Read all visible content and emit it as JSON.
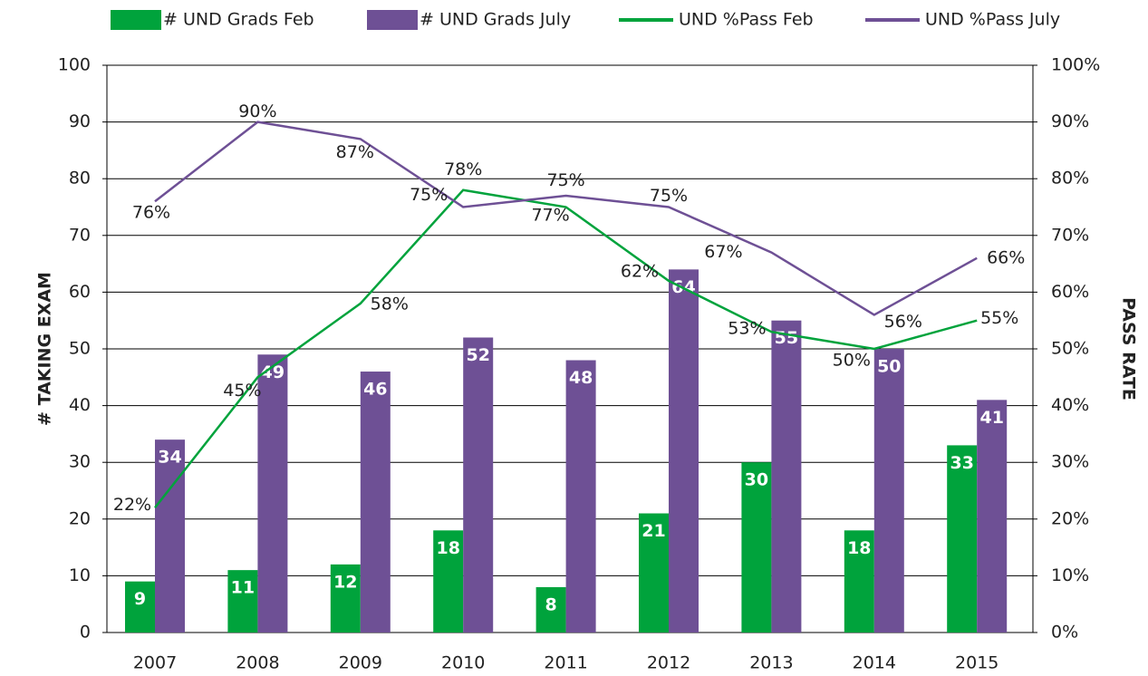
{
  "chart_data": {
    "type": "bar",
    "categories": [
      "2007",
      "2008",
      "2009",
      "2010",
      "2011",
      "2012",
      "2013",
      "2014",
      "2015"
    ],
    "series": [
      {
        "name": "# UND Grads Feb",
        "color": "#00a33c",
        "values": [
          9,
          11,
          12,
          18,
          8,
          21,
          30,
          18,
          33
        ]
      },
      {
        "name": "# UND Grads July",
        "color": "#6e5095",
        "values": [
          34,
          49,
          46,
          52,
          48,
          64,
          55,
          50,
          41
        ]
      },
      {
        "name": "UND %Pass Feb",
        "color": "#00a33c",
        "type": "line",
        "axis": "y2",
        "values": [
          22,
          45,
          58,
          78,
          75,
          62,
          53,
          50,
          55
        ],
        "value_labels": [
          "22%",
          "45%",
          "58%",
          "78%",
          "75%",
          "62%",
          "53%",
          "50%",
          "55%"
        ]
      },
      {
        "name": "UND %Pass July",
        "color": "#6e5095",
        "type": "line",
        "axis": "y2",
        "values": [
          76,
          90,
          87,
          75,
          77,
          75,
          67,
          56,
          66
        ],
        "value_labels": [
          "76%",
          "90%",
          "87%",
          "75%",
          "77%",
          "75%",
          "67%",
          "56%",
          "66%"
        ]
      }
    ],
    "ylabel": "# TAKING EXAM",
    "y2label": "PASS RATE",
    "ylim": [
      0,
      100
    ],
    "yticks": [
      0,
      10,
      20,
      30,
      40,
      50,
      60,
      70,
      80,
      90,
      100
    ],
    "y2lim": [
      0,
      100
    ],
    "y2ticks": [
      {
        "value": 0,
        "label": "0%"
      },
      {
        "value": 10,
        "label": "10%"
      },
      {
        "value": 20,
        "label": "20%"
      },
      {
        "value": 30,
        "label": "30%"
      },
      {
        "value": 40,
        "label": "40%"
      },
      {
        "value": 50,
        "label": "50%"
      },
      {
        "value": 60,
        "label": "60%"
      },
      {
        "value": 70,
        "label": "70%"
      },
      {
        "value": 80,
        "label": "80%"
      },
      {
        "value": 90,
        "label": "90%"
      },
      {
        "value": 100,
        "label": "100%"
      }
    ],
    "grid": true,
    "legend": "top"
  }
}
